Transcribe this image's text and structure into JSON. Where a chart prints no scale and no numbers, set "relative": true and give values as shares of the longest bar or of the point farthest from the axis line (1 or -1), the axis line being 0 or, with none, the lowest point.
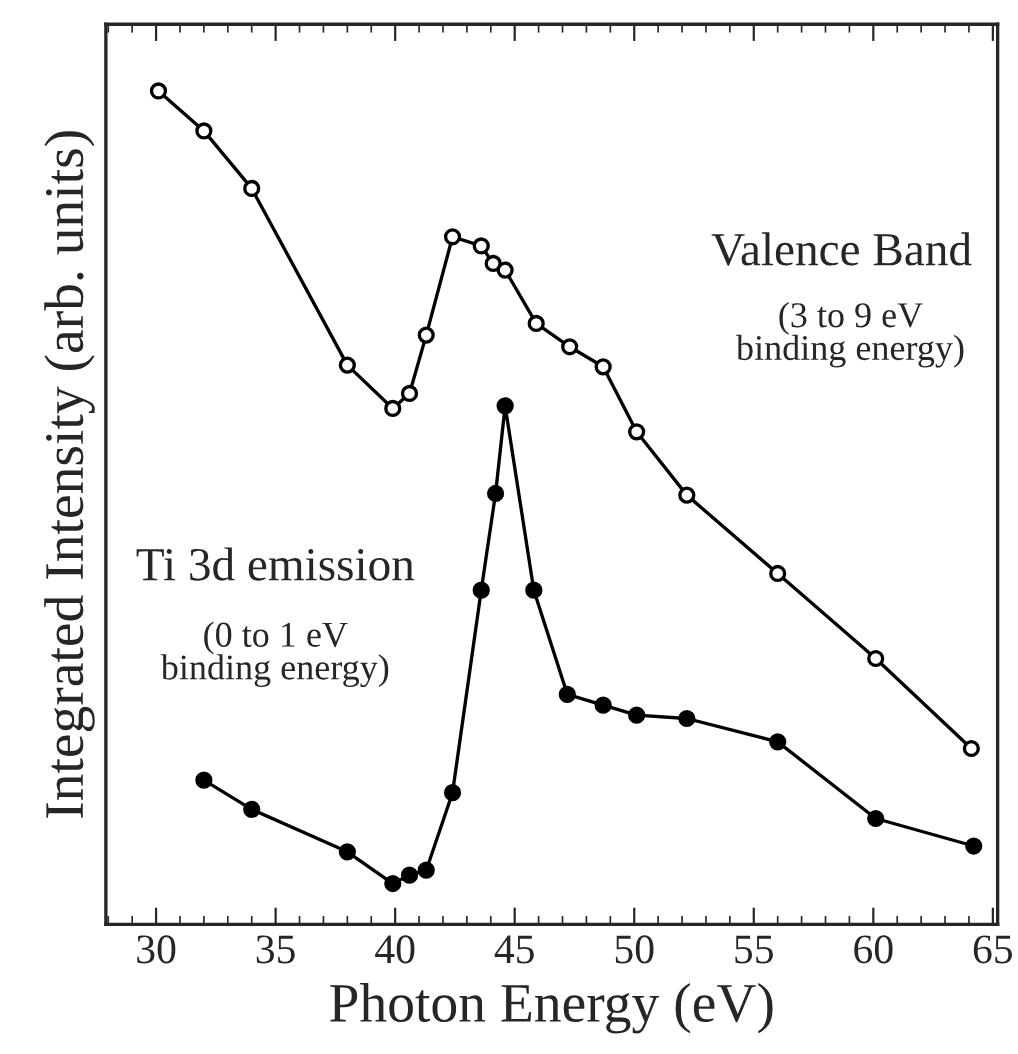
{
  "chart_data": {
    "type": "line",
    "relative": true,
    "xlabel": "Photon Energy (eV)",
    "ylabel": "Integrated Intensity (arb. units)",
    "xlim": [
      27.9,
      65.2
    ],
    "xticks": [
      30,
      35,
      40,
      45,
      50,
      55,
      60,
      65
    ],
    "marker": "circle",
    "line_style": "solid",
    "grid": false,
    "legend": false,
    "annotations": [
      "(3 to 9 eV\nbinding energy)",
      "(0 to 1 eV\nbinding energy)"
    ],
    "series": [
      {
        "name": "Valence Band",
        "color": "#000000",
        "x": [
          30.1,
          32.0,
          34.0,
          38.0,
          39.9,
          40.6,
          41.3,
          42.4,
          43.6,
          44.1,
          44.6,
          45.9,
          47.3,
          48.7,
          50.1,
          52.2,
          56.0,
          60.1,
          64.1
        ],
        "values": [
          1.0,
          0.952,
          0.883,
          0.671,
          0.619,
          0.637,
          0.707,
          0.825,
          0.814,
          0.793,
          0.785,
          0.721,
          0.693,
          0.669,
          0.591,
          0.515,
          0.421,
          0.319,
          0.211
        ]
      },
      {
        "name": "Ti 3d emission",
        "color": "#000000",
        "x": [
          32.0,
          34.0,
          38.0,
          39.9,
          40.6,
          41.3,
          42.4,
          43.6,
          44.2,
          44.6,
          45.8,
          47.2,
          48.7,
          50.1,
          52.2,
          56.0,
          60.1,
          64.2
        ],
        "values": [
          0.173,
          0.138,
          0.087,
          0.049,
          0.059,
          0.065,
          0.158,
          0.401,
          0.517,
          0.622,
          0.401,
          0.276,
          0.263,
          0.251,
          0.247,
          0.219,
          0.127,
          0.094
        ]
      }
    ]
  }
}
